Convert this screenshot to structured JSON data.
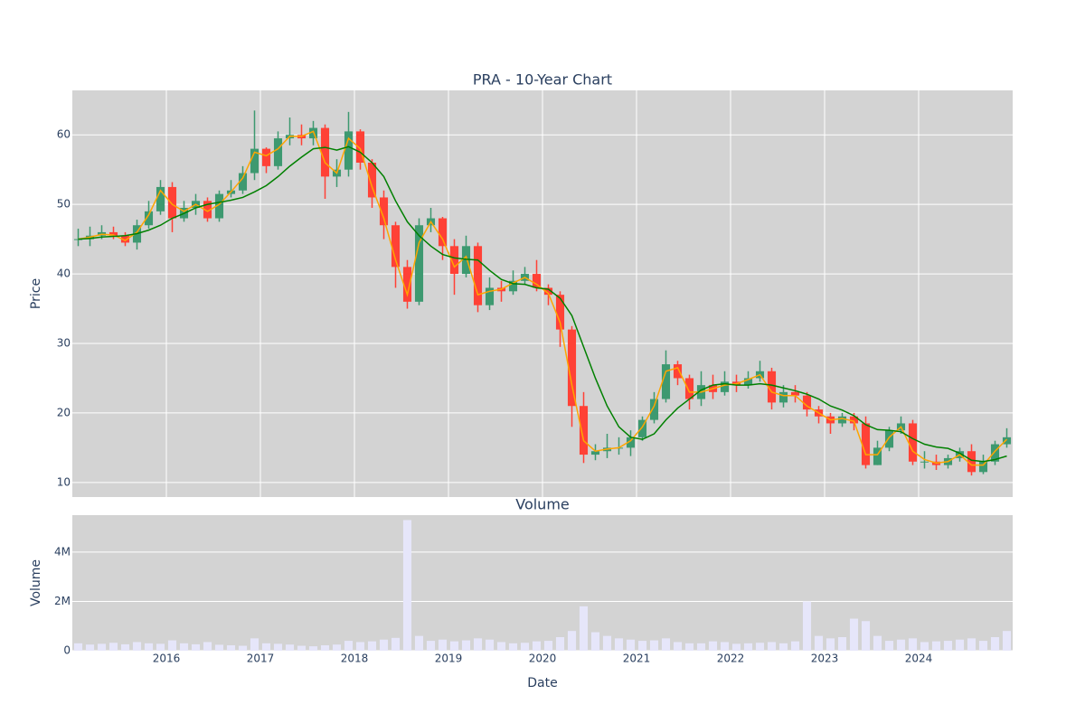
{
  "chart_data": [
    {
      "type": "candlestick",
      "title": "PRA - 10-Year Chart",
      "ylabel": "Price",
      "increasing_color": "#3d9970",
      "decreasing_color": "#ff4136",
      "x": [
        2015.0625,
        2015.1875,
        2015.3125,
        2015.4375,
        2015.5625,
        2015.6875,
        2015.8125,
        2015.9375,
        2016.0625,
        2016.1875,
        2016.3125,
        2016.4375,
        2016.5625,
        2016.6875,
        2016.8125,
        2016.9375,
        2017.0625,
        2017.1875,
        2017.3125,
        2017.4375,
        2017.5625,
        2017.6875,
        2017.8125,
        2017.9375,
        2018.0625,
        2018.1875,
        2018.3125,
        2018.4375,
        2018.5625,
        2018.6875,
        2018.8125,
        2018.9375,
        2019.0625,
        2019.1875,
        2019.3125,
        2019.4375,
        2019.5625,
        2019.6875,
        2019.8125,
        2019.9375,
        2020.0625,
        2020.1875,
        2020.3125,
        2020.4375,
        2020.5625,
        2020.6875,
        2020.8125,
        2020.9375,
        2021.0625,
        2021.1875,
        2021.3125,
        2021.4375,
        2021.5625,
        2021.6875,
        2021.8125,
        2021.9375,
        2022.0625,
        2022.1875,
        2022.3125,
        2022.4375,
        2022.5625,
        2022.6875,
        2022.8125,
        2022.9375,
        2023.0625,
        2023.1875,
        2023.3125,
        2023.4375,
        2023.5625,
        2023.6875,
        2023.8125,
        2023.9375,
        2024.0625,
        2024.1875,
        2024.3125,
        2024.4375,
        2024.5625,
        2024.6875,
        2024.8125,
        2024.9375
      ],
      "open": [
        45,
        45,
        45.5,
        46,
        45.5,
        44.5,
        47,
        49,
        52.5,
        48,
        49.5,
        50.5,
        48,
        51.5,
        52,
        54.5,
        58,
        55.5,
        59.5,
        60,
        59.5,
        61,
        54,
        55,
        60.5,
        56,
        51,
        47,
        41,
        36,
        47,
        48,
        44,
        40,
        44,
        35.5,
        38,
        37.5,
        39,
        40,
        38,
        37,
        32,
        21,
        14,
        14.5,
        15,
        15,
        16.5,
        19,
        22,
        27,
        25,
        22,
        24,
        23,
        24.5,
        24,
        25,
        26,
        21.5,
        23,
        22.5,
        20.5,
        19.5,
        18.5,
        19.5,
        18.5,
        12.5,
        15,
        17.5,
        18.5,
        13,
        13,
        12.5,
        13.5,
        14.5,
        11.5,
        13,
        15.5
      ],
      "high": [
        46.5,
        46.8,
        47,
        46.8,
        46,
        47.8,
        50.5,
        53.5,
        53.2,
        50.5,
        51.5,
        51,
        52,
        53.5,
        55.5,
        63.5,
        58.2,
        60.5,
        62.5,
        61.5,
        62,
        61.5,
        56.5,
        63.3,
        60.8,
        56.5,
        52,
        47.5,
        42,
        48,
        49.5,
        48.2,
        45,
        45.5,
        44.5,
        39.5,
        39,
        40.5,
        41,
        42,
        38.5,
        37.5,
        32.5,
        23,
        15.5,
        17,
        16.5,
        17.5,
        19.5,
        23,
        29,
        27.5,
        25.5,
        26,
        25.5,
        26,
        25.5,
        26,
        27.5,
        26.5,
        24,
        24,
        23,
        21,
        20,
        20,
        20,
        19.5,
        16,
        18,
        19.5,
        19,
        14.5,
        14,
        14,
        15,
        15.5,
        14,
        16,
        17.8
      ],
      "low": [
        44,
        44,
        45,
        45,
        44,
        43.5,
        46.5,
        48.5,
        46,
        47.5,
        48.5,
        47.5,
        47.5,
        51,
        51.5,
        53.5,
        54.5,
        55,
        58.5,
        58.5,
        58.5,
        50.8,
        52.5,
        54,
        55,
        49.5,
        45,
        38,
        35,
        35.5,
        46,
        42,
        37,
        39.5,
        34.5,
        34.8,
        36,
        37,
        38.5,
        37.5,
        35.5,
        29.5,
        18,
        12.8,
        13.2,
        13.5,
        14,
        13.8,
        16,
        18.5,
        21.5,
        24,
        20.5,
        21,
        22,
        22.5,
        23,
        23.5,
        24.5,
        20.5,
        20.8,
        21.5,
        19.5,
        18.5,
        17,
        18,
        17.5,
        12,
        12.5,
        14.5,
        17,
        12.5,
        12,
        11.8,
        12,
        13,
        11,
        11.2,
        12.5,
        15
      ],
      "close": [
        45,
        45.5,
        46,
        45.5,
        44.5,
        47,
        49,
        52.5,
        48,
        49.5,
        50.5,
        48,
        51.5,
        52,
        54.5,
        58,
        55.5,
        59.5,
        60,
        59.5,
        61,
        54,
        55,
        60.5,
        56,
        51,
        47,
        41,
        36,
        47,
        48,
        44,
        40,
        44,
        35.5,
        38,
        37.5,
        39,
        40,
        38,
        37,
        32,
        21,
        14,
        14.5,
        15,
        15,
        16.5,
        19,
        22,
        27,
        25,
        22,
        24,
        23,
        24.5,
        24,
        25,
        26,
        21.5,
        23,
        22.5,
        20.5,
        19.5,
        18.5,
        19.5,
        18.5,
        12.5,
        15,
        17.5,
        18.5,
        13,
        13,
        12.5,
        13.5,
        14.5,
        11.5,
        13,
        15.5,
        16.5
      ],
      "series": [
        {
          "color": "#ffa500",
          "values": [
            45,
            45.3,
            45.7,
            45.6,
            44.8,
            46,
            48.5,
            52,
            50,
            49,
            50,
            49,
            50,
            51.8,
            53.8,
            57.5,
            57,
            58,
            59.8,
            59.8,
            60.5,
            56,
            54.5,
            59.5,
            58,
            52.5,
            48,
            42,
            37,
            44.5,
            47.5,
            45,
            41,
            42.5,
            37,
            37.5,
            37.8,
            38.7,
            39.5,
            38.5,
            37.2,
            33,
            24,
            16,
            14.5,
            14.8,
            15,
            16,
            18,
            21,
            26,
            26.5,
            23,
            23,
            23.5,
            24,
            24.2,
            24.8,
            25.5,
            23,
            22.5,
            22.5,
            21,
            20,
            19,
            19.2,
            18.8,
            14,
            14,
            16.5,
            18,
            14.5,
            13.3,
            12.8,
            13,
            14,
            12.5,
            12.5,
            14.5,
            16.2
          ]
        },
        {
          "color": "#008000",
          "values": [
            45,
            45.1,
            45.3,
            45.4,
            45.5,
            45.8,
            46.3,
            47,
            48,
            48.7,
            49.5,
            50,
            50.3,
            50.6,
            51,
            51.8,
            52.7,
            54,
            55.5,
            56.8,
            58,
            58.2,
            57.8,
            58.3,
            57.5,
            56,
            54,
            50.5,
            47.5,
            45.5,
            44,
            42.8,
            42.3,
            42.1,
            42,
            40.5,
            39.2,
            38.6,
            38.5,
            38,
            37.8,
            36.5,
            34,
            29.5,
            25,
            21,
            18,
            16.5,
            16.2,
            17,
            19,
            20.7,
            22,
            23.3,
            24,
            24.2,
            24,
            24,
            24.2,
            24,
            23.6,
            23.2,
            22.7,
            22,
            21,
            20.4,
            19.6,
            18.3,
            17.6,
            17.5,
            17.3,
            16.3,
            15.5,
            15.1,
            14.9,
            14.2,
            13.2,
            13,
            13.3,
            13.8
          ]
        }
      ],
      "xlim": [
        2015.0,
        2025.0
      ],
      "ylim": [
        7.9,
        66.4
      ],
      "yticks": [
        10,
        20,
        30,
        40,
        50,
        60
      ],
      "grid": true
    },
    {
      "type": "bar",
      "title": "Volume",
      "ylabel": "Volume",
      "xlabel": "Date",
      "color": "#e6e6fa",
      "values": [
        300000,
        250000,
        280000,
        320000,
        260000,
        350000,
        300000,
        280000,
        420000,
        300000,
        260000,
        350000,
        240000,
        220000,
        200000,
        500000,
        300000,
        280000,
        250000,
        200000,
        180000,
        220000,
        250000,
        400000,
        350000,
        380000,
        450000,
        520000,
        5300000,
        600000,
        400000,
        450000,
        380000,
        420000,
        500000,
        450000,
        350000,
        300000,
        320000,
        380000,
        400000,
        550000,
        800000,
        1800000,
        750000,
        600000,
        500000,
        450000,
        400000,
        420000,
        500000,
        350000,
        300000,
        300000,
        380000,
        350000,
        280000,
        300000,
        320000,
        350000,
        300000,
        380000,
        2000000,
        600000,
        500000,
        550000,
        1300000,
        1200000,
        600000,
        400000,
        450000,
        500000,
        350000,
        380000,
        400000,
        450000,
        500000,
        400000,
        550000,
        800000
      ],
      "xlim": [
        2015.0,
        2025.0
      ],
      "xticks": [
        2016,
        2017,
        2018,
        2019,
        2020,
        2021,
        2022,
        2023,
        2024
      ],
      "ylim": [
        0,
        5500000
      ],
      "yticks": [
        0,
        {
          "value": 2000000,
          "label": "2M"
        },
        {
          "value": 4000000,
          "label": "4M"
        }
      ],
      "grid": true
    }
  ]
}
